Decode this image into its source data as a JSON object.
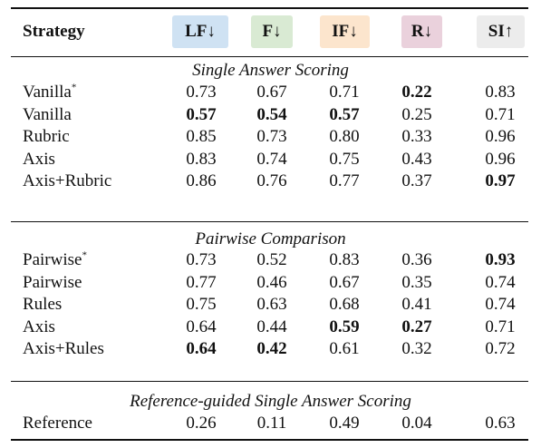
{
  "header": {
    "strategy": "Strategy",
    "cols": [
      {
        "label": "LF",
        "arrow": "↓",
        "color": "#cfe2f3"
      },
      {
        "label": "F",
        "arrow": "↓",
        "color": "#d9ead3"
      },
      {
        "label": "IF",
        "arrow": "↓",
        "color": "#fce5cd"
      },
      {
        "label": "R",
        "arrow": "↓",
        "color": "#ead1dc"
      },
      {
        "label": "SI",
        "arrow": "↑",
        "color": "#ececec"
      }
    ]
  },
  "sections": [
    {
      "title": "Single Answer Scoring",
      "rows": [
        {
          "name": "Vanilla",
          "sup": "*",
          "values": [
            "0.73",
            "0.67",
            "0.71",
            "0.22",
            "0.83"
          ],
          "bold": [
            false,
            false,
            false,
            true,
            false
          ]
        },
        {
          "name": "Vanilla",
          "sup": "",
          "values": [
            "0.57",
            "0.54",
            "0.57",
            "0.25",
            "0.71"
          ],
          "bold": [
            true,
            true,
            true,
            false,
            false
          ]
        },
        {
          "name": "Rubric",
          "sup": "",
          "values": [
            "0.85",
            "0.73",
            "0.80",
            "0.33",
            "0.96"
          ],
          "bold": [
            false,
            false,
            false,
            false,
            false
          ]
        },
        {
          "name": "Axis",
          "sup": "",
          "values": [
            "0.83",
            "0.74",
            "0.75",
            "0.43",
            "0.96"
          ],
          "bold": [
            false,
            false,
            false,
            false,
            false
          ]
        },
        {
          "name": "Axis+Rubric",
          "sup": "",
          "values": [
            "0.86",
            "0.76",
            "0.77",
            "0.37",
            "0.97"
          ],
          "bold": [
            false,
            false,
            false,
            false,
            true
          ]
        }
      ]
    },
    {
      "title": "Pairwise Comparison",
      "rows": [
        {
          "name": "Pairwise",
          "sup": "*",
          "values": [
            "0.73",
            "0.52",
            "0.83",
            "0.36",
            "0.93"
          ],
          "bold": [
            false,
            false,
            false,
            false,
            true
          ]
        },
        {
          "name": "Pairwise",
          "sup": "",
          "values": [
            "0.77",
            "0.46",
            "0.67",
            "0.35",
            "0.74"
          ],
          "bold": [
            false,
            false,
            false,
            false,
            false
          ]
        },
        {
          "name": "Rules",
          "sup": "",
          "values": [
            "0.75",
            "0.63",
            "0.68",
            "0.41",
            "0.74"
          ],
          "bold": [
            false,
            false,
            false,
            false,
            false
          ]
        },
        {
          "name": "Axis",
          "sup": "",
          "values": [
            "0.64",
            "0.44",
            "0.59",
            "0.27",
            "0.71"
          ],
          "bold": [
            false,
            false,
            true,
            true,
            false
          ]
        },
        {
          "name": "Axis+Rules",
          "sup": "",
          "values": [
            "0.64",
            "0.42",
            "0.61",
            "0.32",
            "0.72"
          ],
          "bold": [
            true,
            true,
            false,
            false,
            false
          ]
        }
      ]
    },
    {
      "title": "Reference-guided Single Answer Scoring",
      "rows": [
        {
          "name": "Reference",
          "sup": "",
          "values": [
            "0.26",
            "0.11",
            "0.49",
            "0.04",
            "0.63"
          ],
          "bold": [
            false,
            false,
            false,
            false,
            false
          ]
        }
      ]
    }
  ]
}
